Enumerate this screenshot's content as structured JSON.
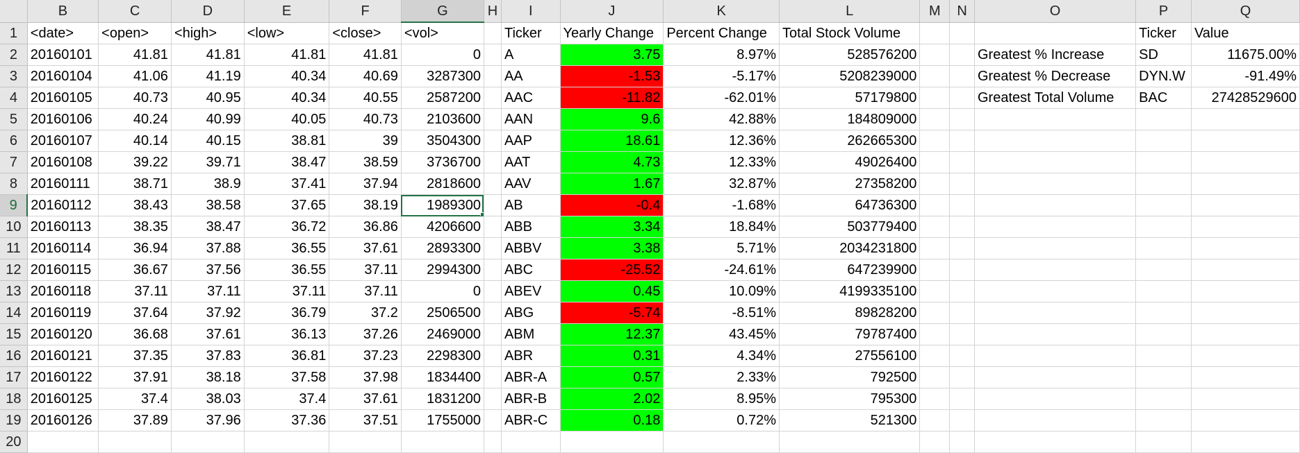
{
  "colors": {
    "positive": "#00ff00",
    "negative": "#ff0000",
    "header_bg": "#e6e6e6",
    "selection": "#217346"
  },
  "sheet": {
    "columns": [
      "B",
      "C",
      "D",
      "E",
      "F",
      "G",
      "H",
      "I",
      "J",
      "K",
      "L",
      "M",
      "N",
      "O",
      "P",
      "Q"
    ],
    "selected_column": "G",
    "selected_row": "9",
    "active_cell": "G9",
    "rows": [
      {
        "row": "1",
        "B": "<date>",
        "C": "<open>",
        "D": "<high>",
        "E": "<low>",
        "F": "<close>",
        "G": "<vol>",
        "H": "",
        "I": "Ticker",
        "J": "Yearly Change",
        "K": "Percent Change",
        "L": "Total Stock Volume",
        "M": "",
        "N": "",
        "O": "",
        "P": "Ticker",
        "Q": "Value"
      },
      {
        "row": "2",
        "B": "20160101",
        "C": "41.81",
        "D": "41.81",
        "E": "41.81",
        "F": "41.81",
        "G": "0",
        "H": "",
        "I": "A",
        "J": "3.75",
        "K": "8.97%",
        "L": "528576200",
        "M": "",
        "N": "",
        "O": "Greatest % Increase",
        "P": "SD",
        "Q": "11675.00%"
      },
      {
        "row": "3",
        "B": "20160104",
        "C": "41.06",
        "D": "41.19",
        "E": "40.34",
        "F": "40.69",
        "G": "3287300",
        "H": "",
        "I": "AA",
        "J": "-1.53",
        "K": "-5.17%",
        "L": "5208239000",
        "M": "",
        "N": "",
        "O": "Greatest % Decrease",
        "P": "DYN.W",
        "Q": "-91.49%"
      },
      {
        "row": "4",
        "B": "20160105",
        "C": "40.73",
        "D": "40.95",
        "E": "40.34",
        "F": "40.55",
        "G": "2587200",
        "H": "",
        "I": "AAC",
        "J": "-11.82",
        "K": "-62.01%",
        "L": "57179800",
        "M": "",
        "N": "",
        "O": "Greatest Total Volume",
        "P": "BAC",
        "Q": "27428529600"
      },
      {
        "row": "5",
        "B": "20160106",
        "C": "40.24",
        "D": "40.99",
        "E": "40.05",
        "F": "40.73",
        "G": "2103600",
        "H": "",
        "I": "AAN",
        "J": "9.6",
        "K": "42.88%",
        "L": "184809000",
        "M": "",
        "N": "",
        "O": "",
        "P": "",
        "Q": ""
      },
      {
        "row": "6",
        "B": "20160107",
        "C": "40.14",
        "D": "40.15",
        "E": "38.81",
        "F": "39",
        "G": "3504300",
        "H": "",
        "I": "AAP",
        "J": "18.61",
        "K": "12.36%",
        "L": "262665300",
        "M": "",
        "N": "",
        "O": "",
        "P": "",
        "Q": ""
      },
      {
        "row": "7",
        "B": "20160108",
        "C": "39.22",
        "D": "39.71",
        "E": "38.47",
        "F": "38.59",
        "G": "3736700",
        "H": "",
        "I": "AAT",
        "J": "4.73",
        "K": "12.33%",
        "L": "49026400",
        "M": "",
        "N": "",
        "O": "",
        "P": "",
        "Q": ""
      },
      {
        "row": "8",
        "B": "20160111",
        "C": "38.71",
        "D": "38.9",
        "E": "37.41",
        "F": "37.94",
        "G": "2818600",
        "H": "",
        "I": "AAV",
        "J": "1.67",
        "K": "32.87%",
        "L": "27358200",
        "M": "",
        "N": "",
        "O": "",
        "P": "",
        "Q": ""
      },
      {
        "row": "9",
        "B": "20160112",
        "C": "38.43",
        "D": "38.58",
        "E": "37.65",
        "F": "38.19",
        "G": "1989300",
        "H": "",
        "I": "AB",
        "J": "-0.4",
        "K": "-1.68%",
        "L": "64736300",
        "M": "",
        "N": "",
        "O": "",
        "P": "",
        "Q": ""
      },
      {
        "row": "10",
        "B": "20160113",
        "C": "38.35",
        "D": "38.47",
        "E": "36.72",
        "F": "36.86",
        "G": "4206600",
        "H": "",
        "I": "ABB",
        "J": "3.34",
        "K": "18.84%",
        "L": "503779400",
        "M": "",
        "N": "",
        "O": "",
        "P": "",
        "Q": ""
      },
      {
        "row": "11",
        "B": "20160114",
        "C": "36.94",
        "D": "37.88",
        "E": "36.55",
        "F": "37.61",
        "G": "2893300",
        "H": "",
        "I": "ABBV",
        "J": "3.38",
        "K": "5.71%",
        "L": "2034231800",
        "M": "",
        "N": "",
        "O": "",
        "P": "",
        "Q": ""
      },
      {
        "row": "12",
        "B": "20160115",
        "C": "36.67",
        "D": "37.56",
        "E": "36.55",
        "F": "37.11",
        "G": "2994300",
        "H": "",
        "I": "ABC",
        "J": "-25.52",
        "K": "-24.61%",
        "L": "647239900",
        "M": "",
        "N": "",
        "O": "",
        "P": "",
        "Q": ""
      },
      {
        "row": "13",
        "B": "20160118",
        "C": "37.11",
        "D": "37.11",
        "E": "37.11",
        "F": "37.11",
        "G": "0",
        "H": "",
        "I": "ABEV",
        "J": "0.45",
        "K": "10.09%",
        "L": "4199335100",
        "M": "",
        "N": "",
        "O": "",
        "P": "",
        "Q": ""
      },
      {
        "row": "14",
        "B": "20160119",
        "C": "37.64",
        "D": "37.92",
        "E": "36.79",
        "F": "37.2",
        "G": "2506500",
        "H": "",
        "I": "ABG",
        "J": "-5.74",
        "K": "-8.51%",
        "L": "89828200",
        "M": "",
        "N": "",
        "O": "",
        "P": "",
        "Q": ""
      },
      {
        "row": "15",
        "B": "20160120",
        "C": "36.68",
        "D": "37.61",
        "E": "36.13",
        "F": "37.26",
        "G": "2469000",
        "H": "",
        "I": "ABM",
        "J": "12.37",
        "K": "43.45%",
        "L": "79787400",
        "M": "",
        "N": "",
        "O": "",
        "P": "",
        "Q": ""
      },
      {
        "row": "16",
        "B": "20160121",
        "C": "37.35",
        "D": "37.83",
        "E": "36.81",
        "F": "37.23",
        "G": "2298300",
        "H": "",
        "I": "ABR",
        "J": "0.31",
        "K": "4.34%",
        "L": "27556100",
        "M": "",
        "N": "",
        "O": "",
        "P": "",
        "Q": ""
      },
      {
        "row": "17",
        "B": "20160122",
        "C": "37.91",
        "D": "38.18",
        "E": "37.58",
        "F": "37.98",
        "G": "1834400",
        "H": "",
        "I": "ABR-A",
        "J": "0.57",
        "K": "2.33%",
        "L": "792500",
        "M": "",
        "N": "",
        "O": "",
        "P": "",
        "Q": ""
      },
      {
        "row": "18",
        "B": "20160125",
        "C": "37.4",
        "D": "38.03",
        "E": "37.4",
        "F": "37.61",
        "G": "1831200",
        "H": "",
        "I": "ABR-B",
        "J": "2.02",
        "K": "8.95%",
        "L": "795300",
        "M": "",
        "N": "",
        "O": "",
        "P": "",
        "Q": ""
      },
      {
        "row": "19",
        "B": "20160126",
        "C": "37.89",
        "D": "37.96",
        "E": "37.36",
        "F": "37.51",
        "G": "1755000",
        "H": "",
        "I": "ABR-C",
        "J": "0.18",
        "K": "0.72%",
        "L": "521300",
        "M": "",
        "N": "",
        "O": "",
        "P": "",
        "Q": ""
      },
      {
        "row": "20",
        "B": "",
        "C": "",
        "D": "",
        "E": "",
        "F": "",
        "G": "",
        "H": "",
        "I": "",
        "J": "",
        "K": "",
        "L": "",
        "M": "",
        "N": "",
        "O": "",
        "P": "",
        "Q": ""
      }
    ]
  }
}
